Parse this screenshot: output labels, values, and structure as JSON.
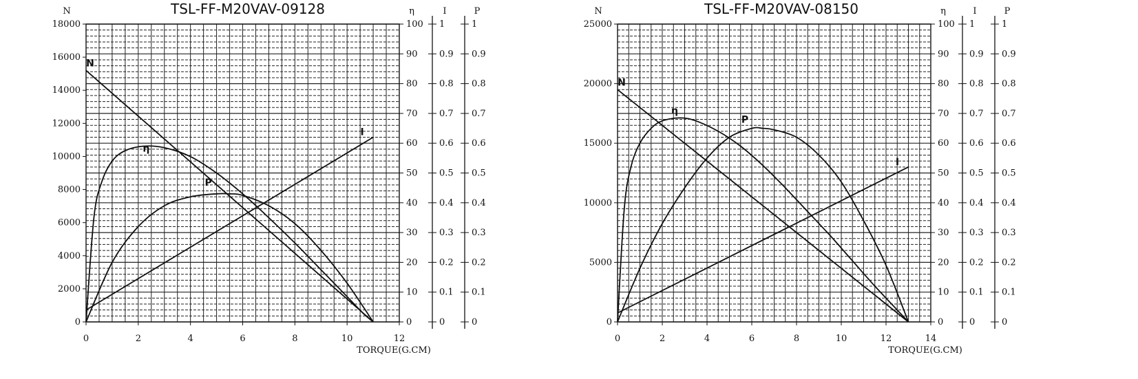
{
  "chart_data": [
    {
      "type": "line",
      "title": "TSL-FF-M20VAV-09128",
      "xlabel": "TORQUE(G.CM)",
      "xlim": [
        0,
        12
      ],
      "xticks": [
        0,
        2,
        4,
        6,
        8,
        10,
        12
      ],
      "left_axis": {
        "symbol": "N",
        "ylim": [
          0,
          18000
        ],
        "ticks": [
          0,
          2000,
          4000,
          6000,
          8000,
          10000,
          12000,
          14000,
          16000,
          18000
        ]
      },
      "right_axes": [
        {
          "symbol": "η",
          "ylim": [
            0,
            100
          ],
          "ticks": [
            0,
            10,
            20,
            30,
            40,
            50,
            60,
            70,
            80,
            90,
            100
          ]
        },
        {
          "symbol": "I",
          "ylim": [
            0,
            1
          ],
          "ticks": [
            "0",
            "0.1",
            "0.2",
            "0.3",
            "0.4",
            "0.5",
            "0.6",
            "0.7",
            "0.8",
            "0.9",
            "1"
          ]
        },
        {
          "symbol": "P",
          "ylim": [
            0,
            1
          ],
          "ticks": [
            "0",
            "0.1",
            "0.2",
            "0.3",
            "0.4",
            "0.5",
            "0.6",
            "0.7",
            "0.8",
            "0.9",
            "1"
          ]
        }
      ],
      "grid": true,
      "series": [
        {
          "name": "N",
          "axis": "N",
          "x": [
            0,
            11
          ],
          "y": [
            15200,
            0
          ]
        },
        {
          "name": "η",
          "axis": "η",
          "x": [
            0,
            0.3,
            0.6,
            1.0,
            1.5,
            2.2,
            3.0,
            4.0,
            5.0,
            6.0,
            7.0,
            8.0,
            9.0,
            10.0,
            10.6,
            11.0
          ],
          "y": [
            0,
            35,
            47,
            54,
            57.5,
            59,
            58.5,
            55.5,
            50,
            43,
            35,
            26.5,
            17.5,
            8.5,
            3,
            0
          ]
        },
        {
          "name": "P",
          "axis": "P",
          "x": [
            0,
            1,
            2,
            3,
            4,
            5,
            5.5,
            6,
            7,
            8,
            9,
            10,
            11
          ],
          "y": [
            0,
            0.2,
            0.32,
            0.39,
            0.42,
            0.43,
            0.43,
            0.425,
            0.39,
            0.33,
            0.24,
            0.13,
            0
          ]
        },
        {
          "name": "I",
          "axis": "I",
          "x": [
            0,
            11
          ],
          "y": [
            0.04,
            0.62
          ]
        }
      ]
    },
    {
      "type": "line",
      "title": "TSL-FF-M20VAV-08150",
      "xlabel": "TORQUE(G.CM)",
      "xlim": [
        0,
        14
      ],
      "xticks": [
        0,
        2,
        4,
        6,
        8,
        10,
        12,
        14
      ],
      "left_axis": {
        "symbol": "N",
        "ylim": [
          0,
          25000
        ],
        "ticks": [
          0,
          5000,
          10000,
          15000,
          20000,
          25000
        ]
      },
      "right_axes": [
        {
          "symbol": "η",
          "ylim": [
            0,
            100
          ],
          "ticks": [
            0,
            10,
            20,
            30,
            40,
            50,
            60,
            70,
            80,
            90,
            100
          ]
        },
        {
          "symbol": "I",
          "ylim": [
            0,
            1
          ],
          "ticks": [
            "0",
            "0.1",
            "0.2",
            "0.3",
            "0.4",
            "0.5",
            "0.6",
            "0.7",
            "0.8",
            "0.9",
            "1"
          ]
        },
        {
          "symbol": "P",
          "ylim": [
            0,
            1
          ],
          "ticks": [
            "0",
            "0.1",
            "0.2",
            "0.3",
            "0.4",
            "0.5",
            "0.6",
            "0.7",
            "0.8",
            "0.9",
            "1"
          ]
        }
      ],
      "grid": true,
      "series": [
        {
          "name": "N",
          "axis": "N",
          "x": [
            0,
            13
          ],
          "y": [
            19500,
            0
          ]
        },
        {
          "name": "η",
          "axis": "η",
          "x": [
            0,
            0.3,
            0.6,
            1.0,
            1.5,
            2.0,
            2.8,
            3.5,
            4.5,
            5.5,
            6.5,
            7.5,
            8.5,
            9.5,
            10.5,
            11.5,
            12.5,
            13.0
          ],
          "y": [
            0,
            38,
            52,
            60,
            65,
            67.5,
            68.5,
            67.5,
            64,
            59,
            52.5,
            45,
            37,
            29,
            20.5,
            12,
            4,
            0
          ]
        },
        {
          "name": "P",
          "axis": "P",
          "x": [
            0,
            1,
            2,
            3,
            4,
            5,
            6,
            6.5,
            7,
            8,
            9,
            10,
            11,
            12,
            13
          ],
          "y": [
            0,
            0.18,
            0.33,
            0.45,
            0.55,
            0.62,
            0.65,
            0.65,
            0.645,
            0.62,
            0.56,
            0.47,
            0.34,
            0.19,
            0
          ]
        },
        {
          "name": "I",
          "axis": "I",
          "x": [
            0,
            13
          ],
          "y": [
            0.03,
            0.52
          ]
        }
      ]
    }
  ]
}
